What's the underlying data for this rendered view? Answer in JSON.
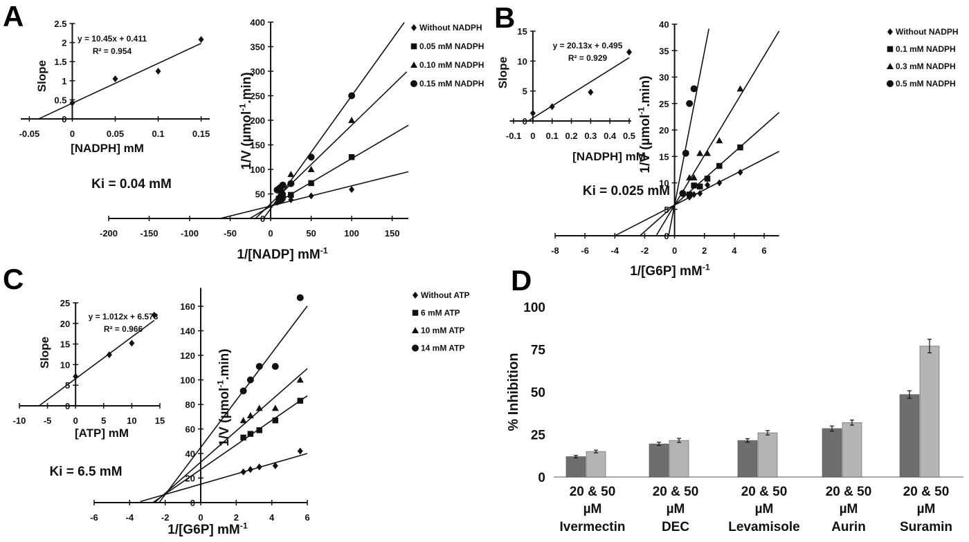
{
  "colors": {
    "ink": "#111111",
    "bar_dark": "#6e6e6e",
    "bar_light": "#b5b5b5",
    "background": "#ffffff"
  },
  "chart_data": [
    {
      "id": "A_inset",
      "panel": "A",
      "type": "scatter",
      "xlabel": {
        "text": "[NADPH] mM"
      },
      "ylabel": {
        "text": "Slope"
      },
      "xlim": [
        -0.06,
        0.16
      ],
      "ylim": [
        0,
        2.5
      ],
      "xticks": [
        -0.05,
        0,
        0.05,
        0.1,
        0.15
      ],
      "yticks": [
        0,
        0.5,
        1,
        1.5,
        2,
        2.5
      ],
      "equation": "y = 10.45x + 0.411",
      "r2": "R² = 0.954",
      "ki": "Ki = 0.04 mM",
      "series": [
        {
          "marker": "diamond",
          "points": [
            [
              0,
              0.42
            ],
            [
              0.05,
              1.05
            ],
            [
              0.1,
              1.25
            ],
            [
              0.15,
              2.08
            ]
          ],
          "fit": {
            "slope": 10.45,
            "intercept": 0.411,
            "x": [
              -0.039,
              0.15
            ]
          }
        }
      ]
    },
    {
      "id": "A_main",
      "panel": "A",
      "type": "scatter",
      "xlabel": {
        "text": "1/[NADP] mM",
        "sup": "-1"
      },
      "ylabel": {
        "text": "1/V (µmol",
        "sup": "-1",
        "post": ".min)"
      },
      "xlim": [
        -200,
        170
      ],
      "ylim": [
        0,
        400
      ],
      "xticks": [
        -200,
        -150,
        -100,
        -50,
        0,
        50,
        100,
        150
      ],
      "yticks": [
        0,
        50,
        100,
        150,
        200,
        250,
        300,
        350,
        400
      ],
      "series": [
        {
          "name": "Without NADPH",
          "marker": "diamond",
          "points": [
            [
              8,
              33
            ],
            [
              10,
              35
            ],
            [
              12,
              36
            ],
            [
              15,
              38
            ],
            [
              25,
              38
            ],
            [
              50,
              46
            ],
            [
              100,
              59
            ]
          ],
          "fit": {
            "slope": 0.41,
            "intercept": 25.5,
            "x": [
              -62,
              170
            ]
          }
        },
        {
          "name": "0.05 mM NADPH",
          "marker": "square",
          "points": [
            [
              10,
              40
            ],
            [
              12,
              42
            ],
            [
              15,
              45
            ],
            [
              25,
              48
            ],
            [
              50,
              72
            ],
            [
              100,
              125
            ]
          ],
          "fit": {
            "slope": 0.97,
            "intercept": 25,
            "x": [
              -25.8,
              170
            ]
          }
        },
        {
          "name": "0.10 mM NADPH",
          "marker": "triangle",
          "points": [
            [
              10,
              45
            ],
            [
              12,
              50
            ],
            [
              15,
              55
            ],
            [
              25,
              90
            ],
            [
              50,
              100
            ],
            [
              100,
              200
            ]
          ],
          "fit": {
            "slope": 1.6,
            "intercept": 30,
            "x": [
              -18.7,
              168
            ]
          }
        },
        {
          "name": "0.15 mM NADPH",
          "marker": "circle",
          "points": [
            [
              8,
              58
            ],
            [
              10,
              60
            ],
            [
              12,
              63
            ],
            [
              15,
              68
            ],
            [
              25,
              71
            ],
            [
              50,
              125
            ],
            [
              100,
              250
            ]
          ],
          "fit": {
            "slope": 2.3,
            "intercept": 20,
            "x": [
              -8.7,
              165
            ]
          }
        }
      ]
    },
    {
      "id": "B_inset",
      "panel": "B",
      "type": "scatter",
      "xlabel": {
        "text": "[NADPH] mM"
      },
      "ylabel": {
        "text": "Slope"
      },
      "xlim": [
        -0.12,
        0.51
      ],
      "ylim": [
        0,
        15
      ],
      "xticks": [
        -0.1,
        0,
        0.1,
        0.2,
        0.3,
        0.4,
        0.5
      ],
      "yticks": [
        0,
        5,
        10,
        15
      ],
      "equation": "y = 20.13x + 0.495",
      "r2": "R² = 0.929",
      "ki": "Ki = 0.025 mM",
      "series": [
        {
          "marker": "diamond",
          "points": [
            [
              0,
              1.3
            ],
            [
              0.1,
              2.4
            ],
            [
              0.3,
              4.8
            ],
            [
              0.5,
              11.5
            ]
          ],
          "fit": {
            "slope": 20.13,
            "intercept": 0.495,
            "x": [
              -0.025,
              0.5
            ]
          }
        }
      ]
    },
    {
      "id": "B_main",
      "panel": "B",
      "type": "scatter",
      "xlabel": {
        "text": "1/[G6P] mM",
        "sup": "-1"
      },
      "ylabel": {
        "text": "1/V (µmol",
        "sup": "-1",
        "post": ".min)"
      },
      "xlim": [
        -8,
        7
      ],
      "ylim": [
        0,
        40
      ],
      "xticks": [
        -8,
        -6,
        -4,
        -2,
        0,
        2,
        4,
        6
      ],
      "yticks": [
        0,
        5,
        10,
        15,
        20,
        25,
        30,
        35,
        40
      ],
      "series": [
        {
          "name": "Without NADPH",
          "marker": "diamond",
          "points": [
            [
              1,
              7.3
            ],
            [
              1.3,
              7.8
            ],
            [
              1.7,
              8
            ],
            [
              2.2,
              9.6
            ],
            [
              3,
              10
            ],
            [
              4.4,
              12
            ]
          ],
          "fit": {
            "slope": 1.45,
            "intercept": 5.8,
            "x": [
              -4,
              7
            ]
          }
        },
        {
          "name": "0.1 mM NADPH",
          "marker": "square",
          "points": [
            [
              1,
              7.8
            ],
            [
              1.3,
              9.5
            ],
            [
              1.7,
              9.3
            ],
            [
              2.2,
              10.8
            ],
            [
              3,
              13.2
            ],
            [
              4.4,
              16.7
            ]
          ],
          "fit": {
            "slope": 2.5,
            "intercept": 5.8,
            "x": [
              -2.3,
              7
            ]
          }
        },
        {
          "name": "0.3 mM NADPH",
          "marker": "triangle",
          "points": [
            [
              1,
              11
            ],
            [
              1.3,
              11
            ],
            [
              1.7,
              15.6
            ],
            [
              2.2,
              15.6
            ],
            [
              3,
              18
            ],
            [
              4.4,
              27.8
            ]
          ],
          "fit": {
            "slope": 4.7,
            "intercept": 5.8,
            "x": [
              -1.2,
              7
            ]
          }
        },
        {
          "name": "0.5 mM NADPH",
          "marker": "circle",
          "points": [
            [
              0.55,
              8
            ],
            [
              0.75,
              15.6
            ],
            [
              1,
              25
            ],
            [
              1.3,
              27.8
            ]
          ],
          "fit": {
            "slope": 14.5,
            "intercept": 5.8,
            "x": [
              -0.4,
              2.3
            ]
          }
        }
      ]
    },
    {
      "id": "C_inset",
      "panel": "C",
      "type": "scatter",
      "xlabel": {
        "text": "[ATP] mM"
      },
      "ylabel": {
        "text": "Slope"
      },
      "xlim": [
        -10,
        15
      ],
      "ylim": [
        0,
        25
      ],
      "xticks": [
        -10,
        -5,
        0,
        5,
        10,
        15
      ],
      "yticks": [
        0,
        5,
        10,
        15,
        20,
        25
      ],
      "equation": "y = 1.012x + 6.573",
      "r2": "R² = 0.966",
      "ki": "Ki = 6.5 mM",
      "series": [
        {
          "marker": "diamond",
          "points": [
            [
              0,
              7.1
            ],
            [
              6,
              12.4
            ],
            [
              10,
              15.2
            ],
            [
              14,
              22
            ]
          ],
          "fit": {
            "slope": 1.012,
            "intercept": 6.573,
            "x": [
              -6.5,
              14
            ]
          }
        }
      ]
    },
    {
      "id": "C_main",
      "panel": "C",
      "type": "scatter",
      "xlabel": {
        "text": "1/[G6P] mM",
        "sup": "-1"
      },
      "ylabel": {
        "text": "1/V (µmol",
        "sup": "-1",
        "post": ".min)"
      },
      "xlim": [
        -6,
        6
      ],
      "ylim": [
        0,
        175
      ],
      "xticks": [
        -6,
        -4,
        -2,
        0,
        2,
        4,
        6
      ],
      "yticks": [
        0,
        20,
        40,
        60,
        80,
        100,
        120,
        140,
        160
      ],
      "series": [
        {
          "name": "Without ATP",
          "marker": "diamond",
          "points": [
            [
              2.4,
              25
            ],
            [
              2.8,
              27
            ],
            [
              3.3,
              29
            ],
            [
              4.2,
              30
            ],
            [
              5.6,
              42
            ]
          ],
          "fit": {
            "slope": 4.17,
            "intercept": 15,
            "x": [
              -3.4,
              6
            ]
          }
        },
        {
          "name": "6 mM ATP",
          "marker": "square",
          "points": [
            [
              2.4,
              53
            ],
            [
              2.8,
              56
            ],
            [
              3.3,
              59
            ],
            [
              4.2,
              67
            ],
            [
              5.6,
              83
            ]
          ],
          "fit": {
            "slope": 10,
            "intercept": 27,
            "x": [
              -2.7,
              6
            ]
          }
        },
        {
          "name": "10 mM ATP",
          "marker": "triangle",
          "points": [
            [
              2.4,
              67
            ],
            [
              2.8,
              71
            ],
            [
              3.3,
              77
            ],
            [
              4.2,
              77
            ],
            [
              5.6,
              100
            ]
          ],
          "fit": {
            "slope": 12.7,
            "intercept": 33,
            "x": [
              -2.6,
              6
            ]
          }
        },
        {
          "name": "14 mM ATP",
          "marker": "circle",
          "points": [
            [
              2.4,
              91
            ],
            [
              2.8,
              100
            ],
            [
              3.3,
              111
            ],
            [
              4.2,
              111
            ],
            [
              5.6,
              167
            ]
          ],
          "fit": {
            "slope": 19.2,
            "intercept": 45,
            "x": [
              -2.35,
              6
            ]
          }
        }
      ]
    },
    {
      "id": "D_bar",
      "panel": "D",
      "type": "bar",
      "ylabel": {
        "text": "% Inhibition"
      },
      "ylim": [
        0,
        100
      ],
      "yticks": [
        0,
        25,
        50,
        75,
        100
      ],
      "categories": [
        {
          "dose": "20 & 50",
          "unit": "µM",
          "name": "Ivermectin"
        },
        {
          "dose": "20 & 50",
          "unit": "µM",
          "name": "DEC"
        },
        {
          "dose": "20 & 50",
          "unit": "µM",
          "name": "Levamisole"
        },
        {
          "dose": "20 & 50",
          "unit": "µM",
          "name": "Aurin"
        },
        {
          "dose": "20 & 50",
          "unit": "µM",
          "name": "Suramin"
        }
      ],
      "series": [
        {
          "dose_uM": 20,
          "color": "#6e6e6e",
          "values": [
            12,
            19.5,
            21.5,
            28.5,
            48.5
          ],
          "errors": [
            0.7,
            1,
            1,
            1.5,
            2.2
          ]
        },
        {
          "dose_uM": 50,
          "color": "#b5b5b5",
          "values": [
            15,
            21.5,
            26,
            32,
            77
          ],
          "errors": [
            0.8,
            1.2,
            1.3,
            1.5,
            4
          ]
        }
      ]
    }
  ]
}
